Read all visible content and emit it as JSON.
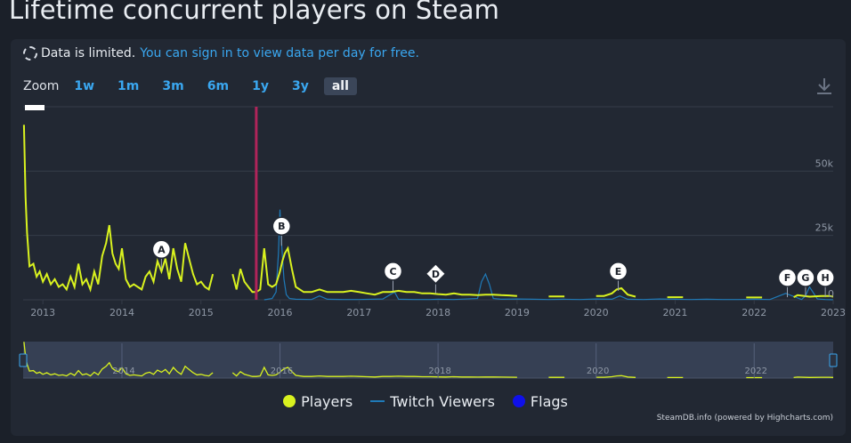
{
  "page": {
    "title": "Lifetime concurrent players on Steam"
  },
  "notice": {
    "limited_text": "Data is limited.",
    "link_text": "You can sign in to view data per day for free."
  },
  "zoom": {
    "label": "Zoom",
    "options": [
      "1w",
      "1m",
      "3m",
      "6m",
      "1y",
      "3y",
      "all"
    ],
    "selected": "all"
  },
  "credit": "SteamDB.info (powered by Highcharts.com)",
  "colors": {
    "players": "#d9f21f",
    "twitch": "#1f7ab8",
    "flags": "#0f10ea",
    "marker_line": "#b0245a",
    "grid": "#353c48",
    "navigator_fill": "#3e4a63"
  },
  "chart_data": {
    "type": "line",
    "title": "Lifetime concurrent players on Steam",
    "y_axis": {
      "ticks": [
        0,
        25000,
        50000
      ],
      "tick_labels": [
        "0",
        "25k",
        "50k"
      ],
      "range": [
        0,
        75000
      ],
      "side": "right"
    },
    "x_axis": {
      "tick_labels": [
        "2013",
        "2014",
        "2015",
        "2016",
        "2017",
        "2018",
        "2019",
        "2020",
        "2021",
        "2022",
        "2023"
      ],
      "range": [
        2012.75,
        2023.0
      ]
    },
    "grid": true,
    "legend": {
      "position": "bottom",
      "entries": [
        "Players",
        "Twitch Viewers",
        "Flags"
      ]
    },
    "series": [
      {
        "name": "Players",
        "x": [
          2012.76,
          2012.78,
          2012.8,
          2012.83,
          2012.88,
          2012.92,
          2012.96,
          2013.0,
          2013.05,
          2013.1,
          2013.15,
          2013.2,
          2013.25,
          2013.3,
          2013.35,
          2013.4,
          2013.45,
          2013.5,
          2013.55,
          2013.6,
          2013.65,
          2013.7,
          2013.75,
          2013.8,
          2013.84,
          2013.88,
          2013.92,
          2013.96,
          2014.0,
          2014.05,
          2014.1,
          2014.15,
          2014.2,
          2014.25,
          2014.3,
          2014.35,
          2014.4,
          2014.45,
          2014.5,
          2014.55,
          2014.6,
          2014.65,
          2014.7,
          2014.75,
          2014.8,
          2014.85,
          2014.9,
          2014.95,
          2015.0,
          2015.05,
          2015.1,
          2015.15,
          2015.4,
          2015.45,
          2015.5,
          2015.55,
          2015.6,
          2015.65,
          2015.7,
          2015.75,
          2015.8,
          2015.85,
          2015.9,
          2015.95,
          2016.0,
          2016.03,
          2016.06,
          2016.1,
          2016.15,
          2016.2,
          2016.3,
          2016.4,
          2016.5,
          2016.6,
          2016.7,
          2016.8,
          2016.9,
          2017.0,
          2017.1,
          2017.2,
          2017.3,
          2017.4,
          2017.5,
          2017.6,
          2017.7,
          2017.8,
          2017.9,
          2018.0,
          2018.1,
          2018.2,
          2018.3,
          2018.4,
          2018.5,
          2018.6,
          2018.7,
          2018.8,
          2018.9,
          2019.0,
          2019.2,
          2019.4,
          2019.6,
          2019.8,
          2020.0,
          2020.1,
          2020.2,
          2020.26,
          2020.32,
          2020.4,
          2020.5,
          2020.7,
          2020.9,
          2021.1,
          2021.3,
          2021.5,
          2021.7,
          2021.9,
          2022.1,
          2022.3,
          2022.5,
          2022.55,
          2022.7,
          2022.85,
          2022.95,
          2023.0
        ],
        "values": [
          68000,
          40000,
          26000,
          13000,
          14000,
          9000,
          11000,
          7000,
          10000,
          6000,
          8000,
          5000,
          6000,
          4000,
          9000,
          5000,
          14000,
          6000,
          8000,
          4000,
          11000,
          6000,
          17000,
          22000,
          29000,
          18000,
          14000,
          12000,
          20000,
          8000,
          5000,
          6000,
          5000,
          4000,
          9000,
          11000,
          7000,
          15000,
          11000,
          16000,
          8000,
          20000,
          12000,
          7000,
          22000,
          16000,
          10000,
          6000,
          7000,
          5000,
          4000,
          10000,
          10000,
          4000,
          12000,
          7000,
          5000,
          3000,
          3000,
          4000,
          20000,
          6000,
          5000,
          6000,
          11000,
          15000,
          18000,
          20000,
          12000,
          5000,
          3000,
          3000,
          4000,
          3000,
          3000,
          3000,
          3500,
          3000,
          2500,
          2000,
          3000,
          3000,
          3500,
          3000,
          3000,
          2500,
          2500,
          2200,
          2000,
          2500,
          2000,
          2000,
          1800,
          2000,
          2000,
          1800,
          1700,
          1500,
          1500,
          1300,
          1300,
          1200,
          1500,
          1500,
          2500,
          4000,
          4500,
          2000,
          1200,
          1000,
          1000,
          1000,
          900,
          900,
          900,
          900,
          900,
          900,
          1000,
          1800,
          1200,
          1500,
          1500,
          1200
        ]
      },
      {
        "name": "Twitch Viewers",
        "x": [
          2015.8,
          2015.9,
          2015.95,
          2015.98,
          2016.0,
          2016.02,
          2016.05,
          2016.08,
          2016.12,
          2016.2,
          2016.4,
          2016.5,
          2016.6,
          2016.8,
          2017.0,
          2017.3,
          2017.45,
          2017.5,
          2017.7,
          2017.9,
          2018.0,
          2018.2,
          2018.5,
          2018.55,
          2018.6,
          2018.65,
          2018.7,
          2018.8,
          2019.0,
          2019.2,
          2019.4,
          2019.6,
          2019.8,
          2020.0,
          2020.2,
          2020.3,
          2020.4,
          2020.6,
          2020.8,
          2021.0,
          2021.2,
          2021.4,
          2021.6,
          2021.8,
          2022.0,
          2022.2,
          2022.4,
          2022.6,
          2022.65,
          2022.7,
          2022.8,
          2022.9,
          2023.0
        ],
        "values": [
          0,
          500,
          3000,
          18000,
          35000,
          22000,
          8000,
          2000,
          500,
          200,
          100,
          1500,
          200,
          100,
          100,
          300,
          3000,
          200,
          100,
          100,
          200,
          100,
          500,
          7000,
          10000,
          6000,
          500,
          200,
          300,
          200,
          100,
          200,
          100,
          300,
          200,
          1500,
          200,
          100,
          300,
          200,
          100,
          200,
          100,
          100,
          200,
          100,
          2500,
          100,
          1500,
          5000,
          300,
          100,
          0
        ]
      }
    ],
    "flags": [
      {
        "label": "A",
        "x": 2014.5,
        "y": 12000,
        "shape": "circle"
      },
      {
        "label": "B",
        "x": 2016.02,
        "y": 21000,
        "shape": "circle"
      },
      {
        "label": "C",
        "x": 2017.43,
        "y": 3500,
        "shape": "circle"
      },
      {
        "label": "D",
        "x": 2017.97,
        "y": 2500,
        "shape": "diamond"
      },
      {
        "label": "E",
        "x": 2020.28,
        "y": 3500,
        "shape": "circle"
      },
      {
        "label": "F",
        "x": 2022.42,
        "y": 1000,
        "shape": "circle"
      },
      {
        "label": "G",
        "x": 2022.65,
        "y": 1000,
        "shape": "circle"
      },
      {
        "label": "H",
        "x": 2022.9,
        "y": 1000,
        "shape": "circle"
      }
    ],
    "marker_line_x": 2015.7,
    "navigator": {
      "tick_labels": [
        "2014",
        "2016",
        "2018",
        "2020",
        "2022"
      ],
      "range": [
        2012.75,
        2023.0
      ]
    }
  }
}
